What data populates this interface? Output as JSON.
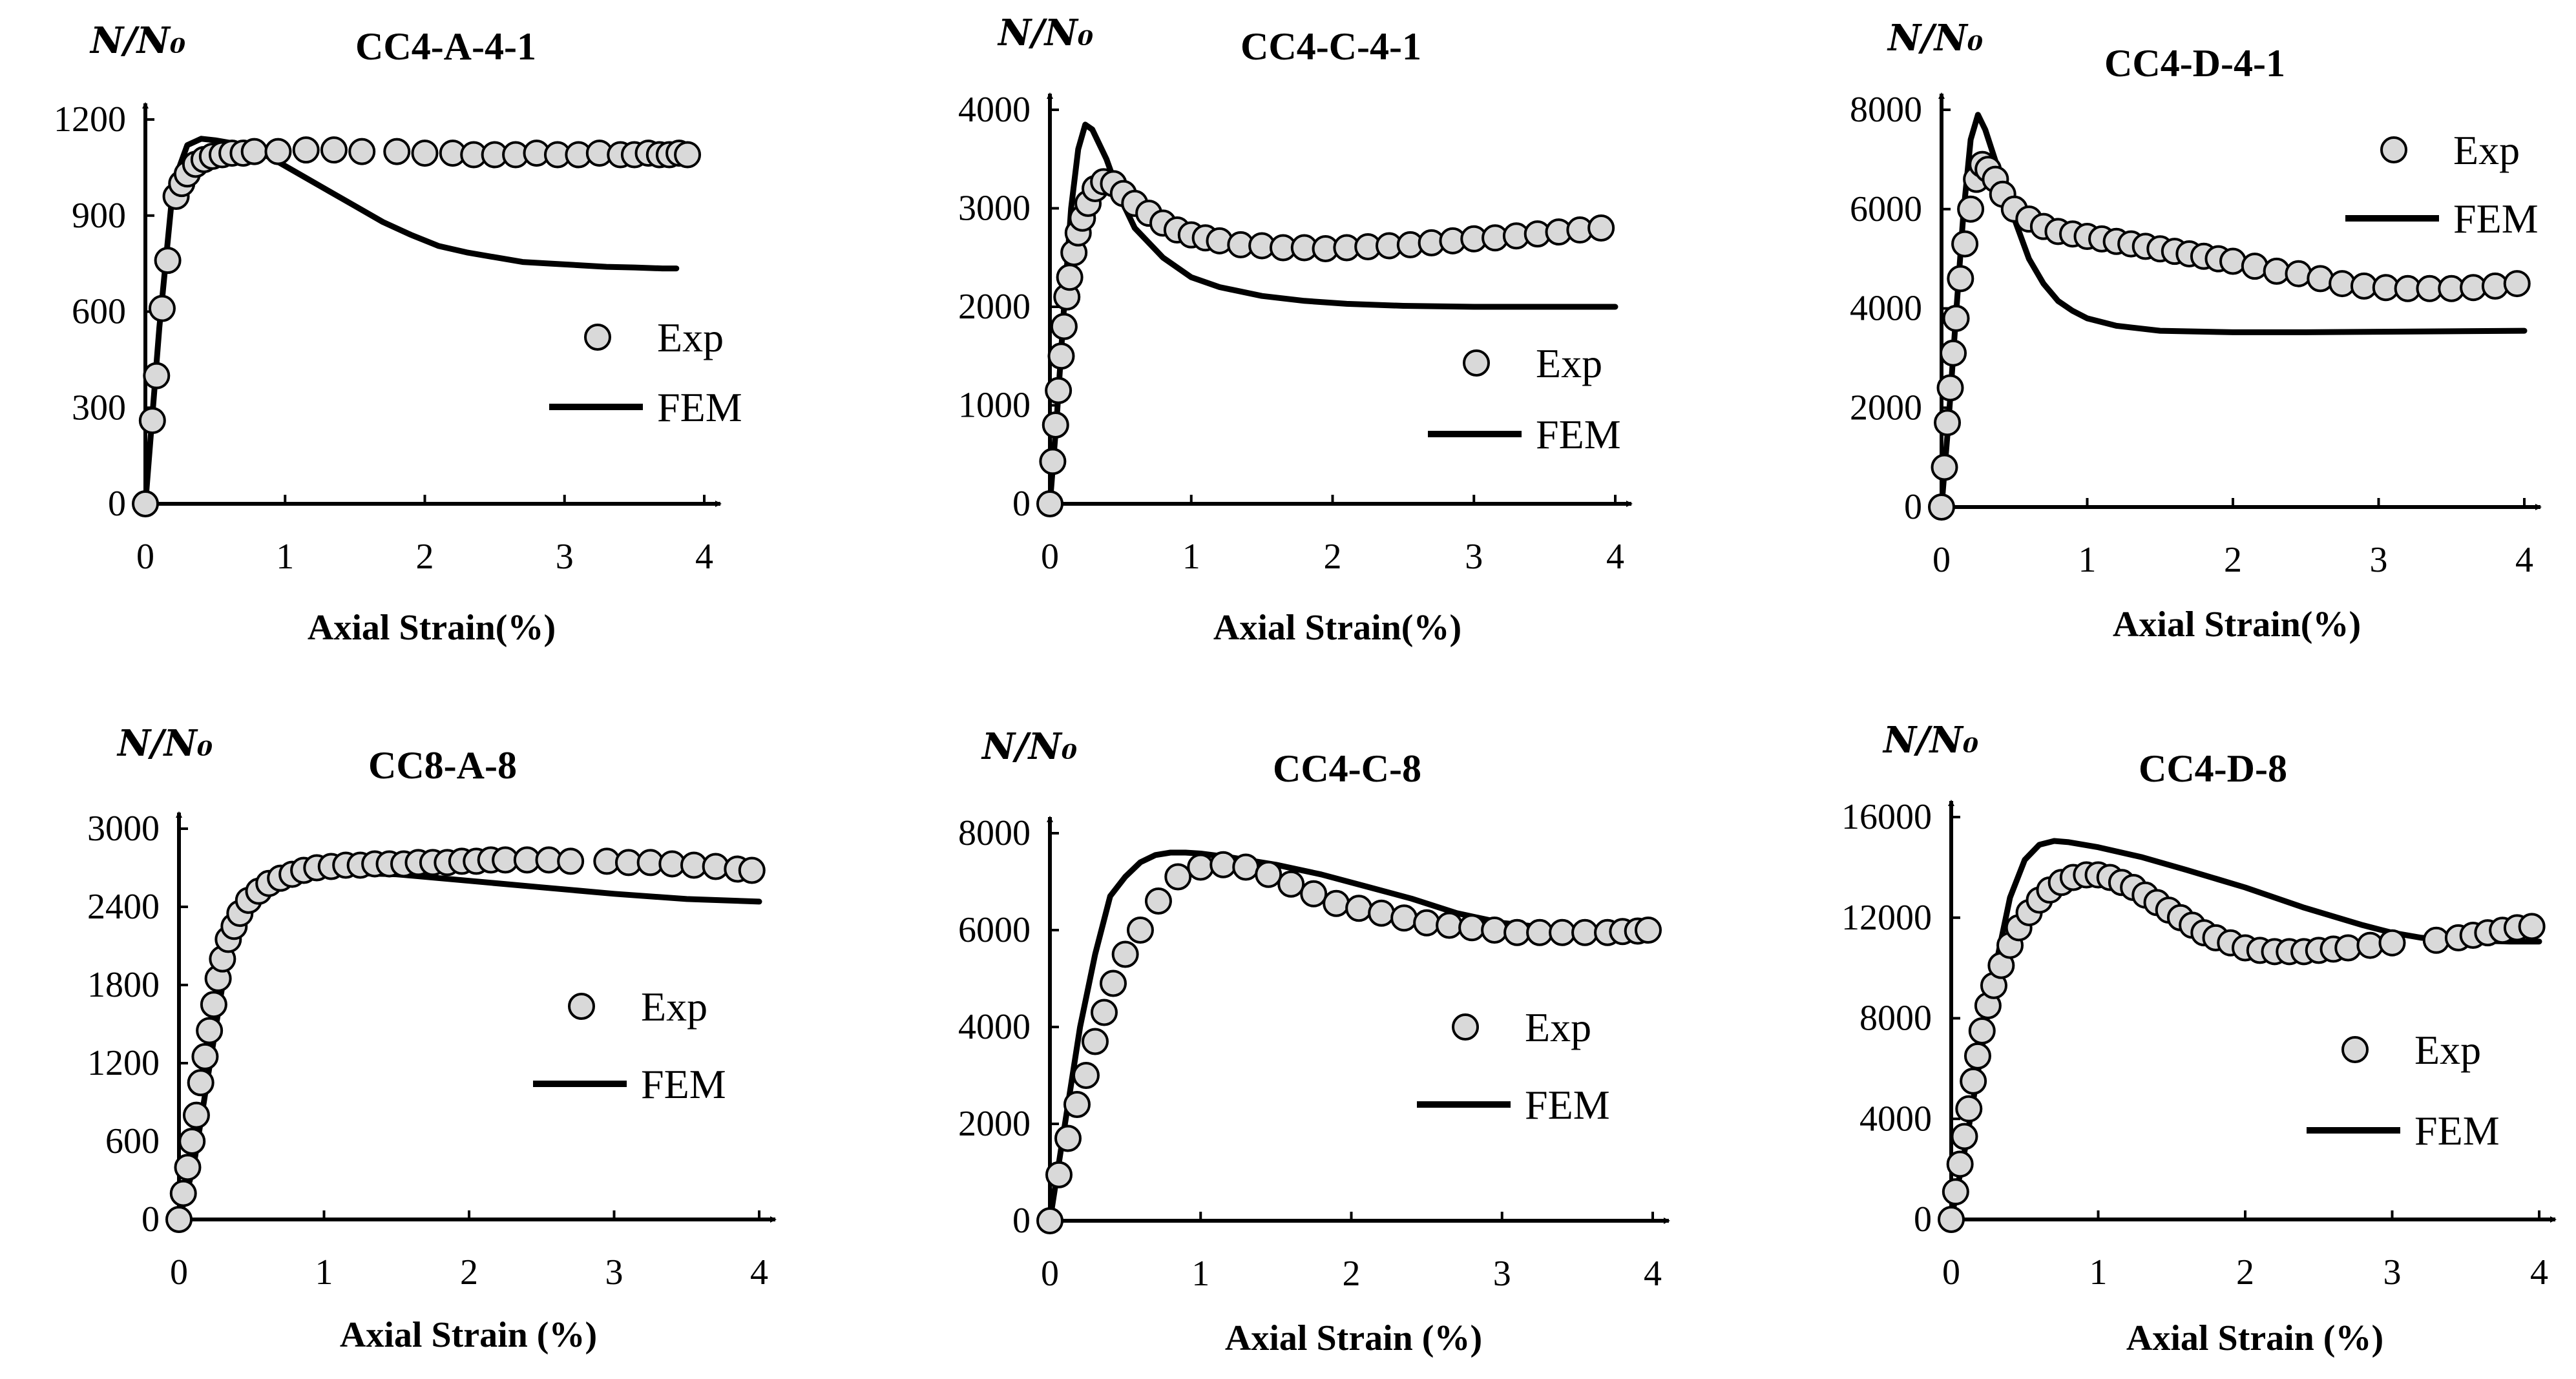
{
  "colors": {
    "axis": "#000000",
    "fem_line": "#000000",
    "exp_marker_fill": "#d9d9d9",
    "exp_marker_stroke": "#000000"
  },
  "chart_data": [
    {
      "type": "line",
      "title": "CC4-A-4-1",
      "ylabel": "N/N₀",
      "xlabel": "Axial Strain(%)",
      "xlim": [
        0,
        4
      ],
      "ylim": [
        0,
        1200
      ],
      "xticks": [
        0,
        1,
        2,
        3,
        4
      ],
      "yticks": [
        0,
        300,
        600,
        900,
        1200
      ],
      "legend": "right",
      "series": [
        {
          "name": "Exp",
          "kind": "markers",
          "x": [
            0,
            0.05,
            0.08,
            0.12,
            0.16,
            0.22,
            0.26,
            0.3,
            0.36,
            0.42,
            0.48,
            0.55,
            0.62,
            0.7,
            0.78,
            0.95,
            1.15,
            1.35,
            1.55,
            1.8,
            2.0,
            2.2,
            2.35,
            2.5,
            2.65,
            2.8,
            2.95,
            3.1,
            3.25,
            3.4,
            3.5,
            3.6,
            3.68,
            3.75,
            3.82,
            3.88
          ],
          "y": [
            0,
            260,
            400,
            610,
            760,
            960,
            1000,
            1030,
            1060,
            1075,
            1085,
            1090,
            1095,
            1095,
            1100,
            1100,
            1105,
            1105,
            1100,
            1100,
            1095,
            1095,
            1090,
            1090,
            1090,
            1095,
            1090,
            1090,
            1095,
            1090,
            1090,
            1095,
            1090,
            1090,
            1095,
            1090
          ]
        },
        {
          "name": "FEM",
          "kind": "line",
          "x": [
            0,
            0.1,
            0.2,
            0.3,
            0.4,
            0.5,
            0.7,
            0.9,
            1.1,
            1.3,
            1.5,
            1.7,
            1.9,
            2.1,
            2.3,
            2.5,
            2.7,
            2.9,
            3.1,
            3.3,
            3.5,
            3.7,
            3.8
          ],
          "y": [
            0,
            550,
            1000,
            1120,
            1140,
            1135,
            1120,
            1080,
            1030,
            980,
            930,
            880,
            840,
            805,
            785,
            770,
            755,
            750,
            745,
            740,
            738,
            735,
            735
          ]
        }
      ]
    },
    {
      "type": "line",
      "title": "CC4-C-4-1",
      "ylabel": "N/N₀",
      "xlabel": "Axial Strain(%)",
      "xlim": [
        0,
        4
      ],
      "ylim": [
        0,
        4000
      ],
      "xticks": [
        0,
        1,
        2,
        3,
        4
      ],
      "yticks": [
        0,
        1000,
        2000,
        3000,
        4000
      ],
      "legend": "right",
      "series": [
        {
          "name": "Exp",
          "kind": "markers",
          "x": [
            0,
            0.02,
            0.04,
            0.06,
            0.08,
            0.1,
            0.12,
            0.14,
            0.17,
            0.2,
            0.23,
            0.27,
            0.32,
            0.38,
            0.45,
            0.52,
            0.6,
            0.7,
            0.8,
            0.9,
            1.0,
            1.1,
            1.2,
            1.35,
            1.5,
            1.65,
            1.8,
            1.95,
            2.1,
            2.25,
            2.4,
            2.55,
            2.7,
            2.85,
            3.0,
            3.15,
            3.3,
            3.45,
            3.6,
            3.75,
            3.9
          ],
          "y": [
            0,
            430,
            800,
            1150,
            1500,
            1800,
            2100,
            2300,
            2550,
            2750,
            2900,
            3050,
            3200,
            3270,
            3250,
            3150,
            3050,
            2950,
            2850,
            2780,
            2730,
            2700,
            2670,
            2630,
            2620,
            2600,
            2600,
            2590,
            2600,
            2610,
            2620,
            2630,
            2650,
            2670,
            2690,
            2700,
            2720,
            2740,
            2760,
            2780,
            2800
          ]
        },
        {
          "name": "FEM",
          "kind": "line",
          "x": [
            0,
            0.05,
            0.1,
            0.15,
            0.2,
            0.25,
            0.3,
            0.4,
            0.5,
            0.6,
            0.8,
            1.0,
            1.2,
            1.5,
            1.8,
            2.1,
            2.5,
            3.0,
            3.5,
            4.0
          ],
          "y": [
            0,
            900,
            2000,
            3000,
            3600,
            3850,
            3800,
            3500,
            3100,
            2800,
            2500,
            2300,
            2200,
            2110,
            2060,
            2030,
            2010,
            2000,
            2000,
            2000
          ]
        }
      ]
    },
    {
      "type": "line",
      "title": "CC4-D-4-1",
      "ylabel": "N/N₀",
      "xlabel": "Axial Strain(%)",
      "xlim": [
        0,
        4
      ],
      "ylim": [
        0,
        8000
      ],
      "xticks": [
        0,
        1,
        2,
        3,
        4
      ],
      "yticks": [
        0,
        2000,
        4000,
        6000,
        8000
      ],
      "legend": "top-right",
      "series": [
        {
          "name": "Exp",
          "kind": "markers",
          "x": [
            0,
            0.02,
            0.04,
            0.06,
            0.08,
            0.1,
            0.13,
            0.16,
            0.2,
            0.24,
            0.28,
            0.32,
            0.37,
            0.42,
            0.5,
            0.6,
            0.7,
            0.8,
            0.9,
            1.0,
            1.1,
            1.2,
            1.3,
            1.4,
            1.5,
            1.6,
            1.7,
            1.8,
            1.9,
            2.0,
            2.15,
            2.3,
            2.45,
            2.6,
            2.75,
            2.9,
            3.05,
            3.2,
            3.35,
            3.5,
            3.65,
            3.8,
            3.95
          ],
          "y": [
            0,
            800,
            1700,
            2400,
            3100,
            3800,
            4600,
            5300,
            6000,
            6600,
            6900,
            6800,
            6600,
            6300,
            6000,
            5800,
            5650,
            5550,
            5500,
            5450,
            5400,
            5350,
            5300,
            5250,
            5200,
            5150,
            5100,
            5050,
            5000,
            4950,
            4850,
            4750,
            4700,
            4600,
            4500,
            4450,
            4420,
            4400,
            4400,
            4400,
            4420,
            4450,
            4500
          ]
        },
        {
          "name": "FEM",
          "kind": "line",
          "x": [
            0,
            0.05,
            0.1,
            0.15,
            0.2,
            0.25,
            0.3,
            0.4,
            0.5,
            0.6,
            0.7,
            0.8,
            0.9,
            1.0,
            1.2,
            1.5,
            2.0,
            2.5,
            3.0,
            3.5,
            4.0
          ],
          "y": [
            0,
            1800,
            3900,
            5900,
            7400,
            7900,
            7600,
            6700,
            5800,
            5000,
            4500,
            4150,
            3950,
            3800,
            3650,
            3550,
            3520,
            3520,
            3530,
            3540,
            3550
          ]
        }
      ]
    },
    {
      "type": "line",
      "title": "CC8-A-8",
      "ylabel": "N/N₀",
      "xlabel": "Axial Strain (%)",
      "xlim": [
        0,
        4
      ],
      "ylim": [
        0,
        3000
      ],
      "xticks": [
        0,
        1,
        2,
        3,
        4
      ],
      "yticks": [
        0,
        600,
        1200,
        1800,
        2400,
        3000
      ],
      "legend": "right",
      "series": [
        {
          "name": "Exp",
          "kind": "markers",
          "x": [
            0,
            0.03,
            0.06,
            0.09,
            0.12,
            0.15,
            0.18,
            0.21,
            0.24,
            0.27,
            0.3,
            0.34,
            0.38,
            0.42,
            0.48,
            0.55,
            0.62,
            0.7,
            0.78,
            0.86,
            0.95,
            1.05,
            1.15,
            1.25,
            1.35,
            1.45,
            1.55,
            1.65,
            1.75,
            1.85,
            1.95,
            2.05,
            2.15,
            2.25,
            2.4,
            2.55,
            2.7,
            2.95,
            3.1,
            3.25,
            3.4,
            3.55,
            3.7,
            3.85,
            3.95
          ],
          "y": [
            0,
            200,
            400,
            600,
            800,
            1050,
            1250,
            1450,
            1650,
            1850,
            2000,
            2150,
            2250,
            2350,
            2450,
            2520,
            2580,
            2620,
            2650,
            2680,
            2700,
            2710,
            2720,
            2720,
            2730,
            2730,
            2730,
            2740,
            2740,
            2740,
            2750,
            2750,
            2760,
            2760,
            2760,
            2760,
            2750,
            2750,
            2740,
            2740,
            2730,
            2720,
            2710,
            2690,
            2680
          ]
        },
        {
          "name": "FEM",
          "kind": "line",
          "x": [
            0,
            0.1,
            0.2,
            0.3,
            0.4,
            0.5,
            0.6,
            0.8,
            1.0,
            1.2,
            1.5,
            2.0,
            2.5,
            3.0,
            3.5,
            4.0
          ],
          "y": [
            0,
            400,
            1100,
            1800,
            2250,
            2450,
            2550,
            2620,
            2650,
            2660,
            2650,
            2600,
            2550,
            2500,
            2460,
            2440
          ]
        }
      ]
    },
    {
      "type": "line",
      "title": "CC4-C-8",
      "ylabel": "N/N₀",
      "xlabel": "Axial Strain (%)",
      "xlim": [
        0,
        4
      ],
      "ylim": [
        0,
        8000
      ],
      "xticks": [
        0,
        1,
        2,
        3,
        4
      ],
      "yticks": [
        0,
        2000,
        4000,
        6000,
        8000
      ],
      "legend": "right",
      "series": [
        {
          "name": "Exp",
          "kind": "markers",
          "x": [
            0,
            0.06,
            0.12,
            0.18,
            0.24,
            0.3,
            0.36,
            0.42,
            0.5,
            0.6,
            0.72,
            0.85,
            1.0,
            1.15,
            1.3,
            1.45,
            1.6,
            1.75,
            1.9,
            2.05,
            2.2,
            2.35,
            2.5,
            2.65,
            2.8,
            2.95,
            3.1,
            3.25,
            3.4,
            3.55,
            3.7,
            3.8,
            3.9,
            3.97
          ],
          "y": [
            0,
            950,
            1700,
            2400,
            3000,
            3700,
            4300,
            4900,
            5500,
            6000,
            6600,
            7100,
            7300,
            7350,
            7300,
            7150,
            6950,
            6750,
            6550,
            6450,
            6350,
            6250,
            6150,
            6100,
            6050,
            6000,
            5950,
            5950,
            5950,
            5950,
            5950,
            5970,
            5980,
            6000
          ]
        },
        {
          "name": "FEM",
          "kind": "line",
          "x": [
            0,
            0.1,
            0.2,
            0.3,
            0.4,
            0.5,
            0.6,
            0.7,
            0.8,
            0.9,
            1.0,
            1.2,
            1.5,
            1.8,
            2.1,
            2.4,
            2.7,
            3.0,
            3.3,
            3.6,
            4.0
          ],
          "y": [
            0,
            2000,
            4000,
            5500,
            6700,
            7100,
            7400,
            7550,
            7600,
            7600,
            7580,
            7500,
            7350,
            7150,
            6900,
            6650,
            6350,
            6150,
            6050,
            6000,
            5980
          ]
        }
      ]
    },
    {
      "type": "line",
      "title": "CC4-D-8",
      "ylabel": "N/N₀",
      "xlabel": "Axial Strain (%)",
      "xlim": [
        0,
        4
      ],
      "ylim": [
        0,
        16000
      ],
      "xticks": [
        0,
        1,
        2,
        3,
        4
      ],
      "yticks": [
        0,
        4000,
        8000,
        12000,
        16000
      ],
      "legend": "bottom-right",
      "series": [
        {
          "name": "Exp",
          "kind": "markers",
          "x": [
            0,
            0.03,
            0.06,
            0.09,
            0.12,
            0.15,
            0.18,
            0.21,
            0.25,
            0.29,
            0.34,
            0.4,
            0.46,
            0.53,
            0.6,
            0.67,
            0.75,
            0.83,
            0.92,
            1.0,
            1.08,
            1.16,
            1.24,
            1.32,
            1.4,
            1.48,
            1.56,
            1.64,
            1.72,
            1.8,
            1.9,
            2.0,
            2.1,
            2.2,
            2.3,
            2.4,
            2.5,
            2.6,
            2.7,
            2.85,
            3.0,
            3.3,
            3.45,
            3.55,
            3.65,
            3.75,
            3.85,
            3.95
          ],
          "y": [
            0,
            1100,
            2200,
            3300,
            4400,
            5500,
            6500,
            7500,
            8500,
            9300,
            10100,
            10900,
            11600,
            12200,
            12700,
            13100,
            13400,
            13600,
            13700,
            13700,
            13600,
            13400,
            13200,
            12900,
            12600,
            12300,
            12000,
            11700,
            11400,
            11200,
            11000,
            10800,
            10700,
            10650,
            10650,
            10650,
            10700,
            10750,
            10800,
            10900,
            11000,
            11100,
            11200,
            11300,
            11400,
            11500,
            11600,
            11650
          ]
        },
        {
          "name": "FEM",
          "kind": "line",
          "x": [
            0,
            0.1,
            0.2,
            0.3,
            0.4,
            0.5,
            0.6,
            0.7,
            0.8,
            1.0,
            1.3,
            1.6,
            2.0,
            2.4,
            2.8,
            3.0,
            3.2,
            3.5,
            3.8,
            4.0
          ],
          "y": [
            0,
            3000,
            6500,
            10000,
            12800,
            14300,
            14900,
            15050,
            15000,
            14800,
            14400,
            13900,
            13200,
            12400,
            11700,
            11400,
            11200,
            11100,
            11050,
            11050
          ]
        }
      ]
    }
  ]
}
